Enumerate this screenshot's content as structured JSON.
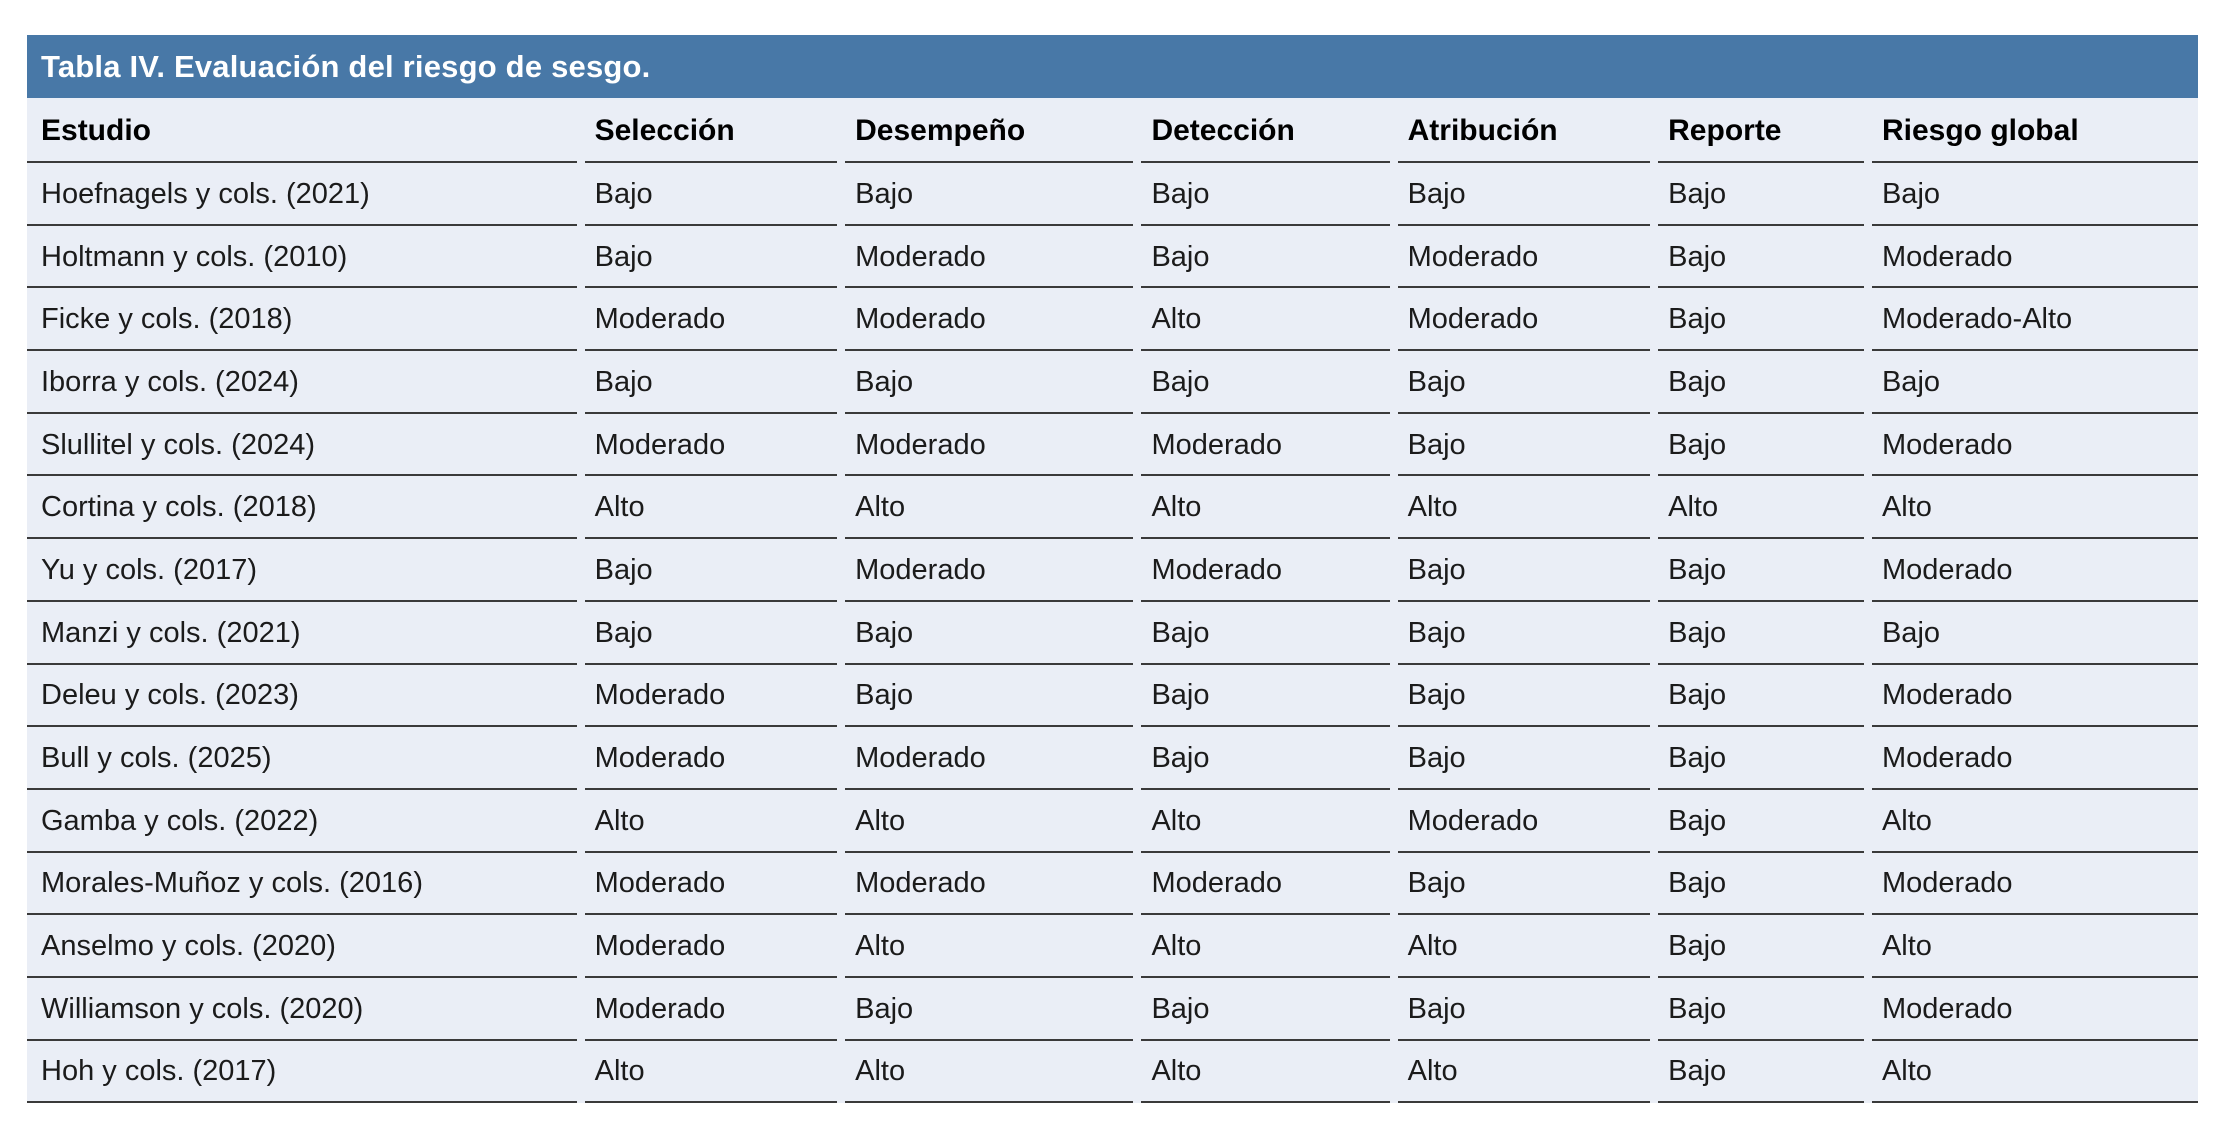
{
  "table": {
    "title": "Tabla IV. Evaluación del riesgo de sesgo.",
    "columns": [
      "Estudio",
      "Selección",
      "Desempeño",
      "Detección",
      "Atribución",
      "Reporte",
      "Riesgo global"
    ],
    "rows": [
      [
        "Hoefnagels y cols. (2021)",
        "Bajo",
        "Bajo",
        "Bajo",
        "Bajo",
        "Bajo",
        "Bajo"
      ],
      [
        "Holtmann y cols. (2010)",
        "Bajo",
        "Moderado",
        "Bajo",
        "Moderado",
        "Bajo",
        "Moderado"
      ],
      [
        "Ficke y cols. (2018)",
        "Moderado",
        "Moderado",
        "Alto",
        "Moderado",
        "Bajo",
        "Moderado-Alto"
      ],
      [
        "Iborra y cols. (2024)",
        "Bajo",
        "Bajo",
        "Bajo",
        "Bajo",
        "Bajo",
        "Bajo"
      ],
      [
        "Slullitel y cols. (2024)",
        "Moderado",
        "Moderado",
        "Moderado",
        "Bajo",
        "Bajo",
        "Moderado"
      ],
      [
        "Cortina y cols. (2018)",
        "Alto",
        "Alto",
        "Alto",
        "Alto",
        "Alto",
        "Alto"
      ],
      [
        "Yu y cols. (2017)",
        "Bajo",
        "Moderado",
        "Moderado",
        "Bajo",
        "Bajo",
        "Moderado"
      ],
      [
        "Manzi y cols. (2021)",
        "Bajo",
        "Bajo",
        "Bajo",
        "Bajo",
        "Bajo",
        "Bajo"
      ],
      [
        "Deleu y cols. (2023)",
        "Moderado",
        "Bajo",
        "Bajo",
        "Bajo",
        "Bajo",
        "Moderado"
      ],
      [
        "Bull y cols. (2025)",
        "Moderado",
        "Moderado",
        "Bajo",
        "Bajo",
        "Bajo",
        "Moderado"
      ],
      [
        "Gamba y cols. (2022)",
        "Alto",
        "Alto",
        "Alto",
        "Moderado",
        "Bajo",
        "Alto"
      ],
      [
        "Morales-Muñoz y cols. (2016)",
        "Moderado",
        "Moderado",
        "Moderado",
        "Bajo",
        "Bajo",
        "Moderado"
      ],
      [
        "Anselmo y cols. (2020)",
        "Moderado",
        "Alto",
        "Alto",
        "Alto",
        "Bajo",
        "Alto"
      ],
      [
        "Williamson y cols. (2020)",
        "Moderado",
        "Bajo",
        "Bajo",
        "Bajo",
        "Bajo",
        "Moderado"
      ],
      [
        "Hoh y cols. (2017)",
        "Alto",
        "Alto",
        "Alto",
        "Alto",
        "Bajo",
        "Alto"
      ]
    ],
    "column_widths_pct": [
      25.5,
      12.0,
      13.65,
      11.8,
      12.0,
      9.85,
      15.2
    ]
  },
  "colors": {
    "title_bar_blue": "#4878A7",
    "row_background": "#EAEEF6",
    "separator_line": "#3A3A3A",
    "title_text": "#FFFFFF",
    "body_text": "#1B1B1B"
  }
}
